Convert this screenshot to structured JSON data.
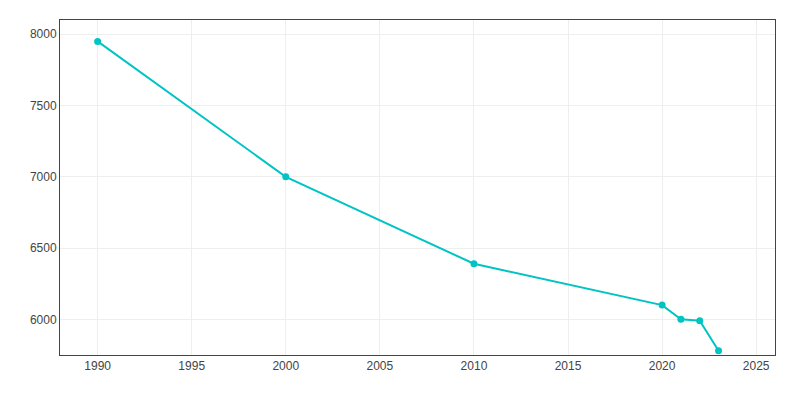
{
  "chart_data": {
    "type": "line",
    "x": [
      1990,
      2000,
      2010,
      2020,
      2021,
      2022,
      2023
    ],
    "values": [
      7950,
      7000,
      6390,
      6100,
      6000,
      5990,
      5780
    ],
    "color": "#00C4C4",
    "marker": "circle",
    "xlim": [
      1988,
      2026
    ],
    "ylim": [
      5750,
      8100
    ],
    "xticks": [
      1990,
      1995,
      2000,
      2005,
      2010,
      2015,
      2020,
      2025
    ],
    "yticks": [
      6000,
      6500,
      7000,
      7500,
      8000
    ],
    "grid": true
  }
}
